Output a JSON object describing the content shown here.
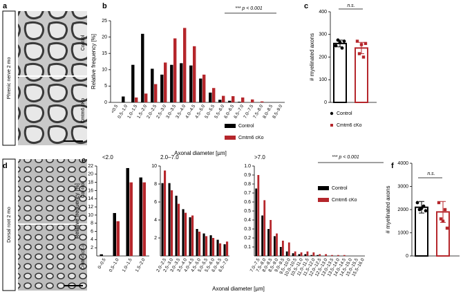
{
  "panels": {
    "a": {
      "letter": "a",
      "side_label": "Phrenic nerve 2 mo",
      "image_labels": [
        "Control",
        "Cmtm6 cKo"
      ]
    },
    "b": {
      "letter": "b"
    },
    "c": {
      "letter": "c"
    },
    "d": {
      "letter": "d",
      "side_label": "Dorsal root 2 mo",
      "image_labels": [
        "Control",
        "Cmtm6 cKo"
      ]
    },
    "e": {
      "letter": "e"
    },
    "f": {
      "letter": "f"
    }
  },
  "chart_data": [
    {
      "type": "bar",
      "y_label": "Relative frequency [%]",
      "x_label": "Axonal diameter [µm]",
      "annotation": "*** p < 0.001",
      "legend": true,
      "categories": [
        "<0.5",
        "0.5–1.0",
        "1.0–1.5",
        "1.5–2.0",
        "2.0–2.5",
        "2.5–3.0",
        "3.0–3.5",
        "3.5–4.0",
        "4.0–4.5",
        "4.5–5.0",
        "5.0–5.5",
        "5.5–6.0",
        "6.0–6.5",
        "6.5–7.0",
        "7.0–7.5",
        "7.5–8.0",
        "8.0–8.5",
        "8.5–9.0"
      ],
      "series": [
        {
          "name": "Control",
          "color": "#000000",
          "values": [
            0,
            1.8,
            11.5,
            21,
            10.3,
            8.5,
            11.5,
            12,
            11.3,
            7.3,
            3,
            0.8,
            0.5,
            0.2,
            0,
            0,
            0,
            0
          ]
        },
        {
          "name": "Cmtm6 cKo",
          "color": "#b5262b",
          "values": [
            0,
            0,
            1.5,
            2.7,
            5.6,
            12.2,
            19.6,
            22.8,
            17.2,
            8.5,
            4.4,
            2,
            1.9,
            1.5,
            0.9,
            0.3,
            0,
            0
          ]
        }
      ],
      "ylim": [
        0,
        25
      ],
      "yticks": [
        0,
        5,
        10,
        15,
        20,
        25
      ]
    },
    {
      "type": "bar",
      "y_label": "# myelinated axons",
      "annotation": "n.s.",
      "legend": true,
      "series": [
        {
          "name": "Control",
          "color": "#000000",
          "marker": "circle",
          "values": [
            260
          ],
          "errors": [
            15
          ],
          "points": [
            250,
            275,
            265,
            240,
            270
          ]
        },
        {
          "name": "Cmtm6 cKo",
          "color": "#b5262b",
          "marker": "square",
          "values": [
            240
          ],
          "errors": [
            25
          ],
          "points": [
            270,
            215,
            255,
            200,
            260
          ]
        }
      ],
      "ylim": [
        0,
        400
      ],
      "yticks": [
        0,
        100,
        200,
        300,
        400
      ]
    },
    {
      "type": "bar",
      "title": "<2.0",
      "y_label": "Relative frequency [%]",
      "legend": false,
      "categories": [
        "0–0.5",
        "0.5–1.0",
        "1.0–1.5",
        "1.5–2.0"
      ],
      "series": [
        {
          "name": "Control",
          "color": "#000000",
          "values": [
            0.4,
            10.5,
            21.5,
            19.2
          ]
        },
        {
          "name": "Cmtm6 cKo",
          "color": "#b5262b",
          "values": [
            0,
            8.5,
            18,
            18
          ]
        }
      ],
      "ylim": [
        0,
        22
      ],
      "yticks": [
        2,
        4,
        6,
        8,
        10,
        12,
        14,
        16,
        18,
        20,
        22
      ]
    },
    {
      "type": "bar",
      "title": "2.0–7.0",
      "x_label": "Axonal diameter [µm]",
      "legend": false,
      "categories": [
        "2.0–2.5",
        "2.5–3.0",
        "3.0–3.5",
        "3.5–4.0",
        "4.0–4.5",
        "4.5–5.0",
        "5.0–5.5",
        "5.5–6.0",
        "6.0–6.5",
        "6.5–7.0"
      ],
      "series": [
        {
          "name": "Control",
          "color": "#000000",
          "values": [
            8.1,
            8.1,
            6.7,
            5.2,
            4.3,
            3,
            2.5,
            2.3,
            1.8,
            1.3
          ]
        },
        {
          "name": "Cmtm6 cKo",
          "color": "#b5262b",
          "values": [
            9.5,
            7.3,
            5.8,
            4.8,
            4.5,
            2.7,
            2.2,
            2,
            1.4,
            1.6
          ]
        }
      ],
      "ylim": [
        0,
        10
      ],
      "yticks": [
        2,
        4,
        6,
        8,
        10
      ]
    },
    {
      "type": "bar",
      "title": ">7.0",
      "annotation": "*** p < 0.001",
      "legend": true,
      "categories": [
        "7.0–7.5",
        "7.5–8.0",
        "8.0–8.5",
        "8.5–9.0",
        "9.0–9.5",
        "9.5–10.0",
        "10.0–10.5",
        "10.5–11.0",
        "11.0–11.5",
        "11.5–12.0",
        "12.0–12.5",
        "12.5–13.0",
        "13.0–13.5",
        "13.5–14.0",
        "14.0–14.5",
        "14.5–15.0",
        "15.0–15.5",
        "15.5–16.0"
      ],
      "series": [
        {
          "name": "Control",
          "color": "#000000",
          "values": [
            0.75,
            0.45,
            0.3,
            0.22,
            0.1,
            0.05,
            0.03,
            0.02,
            0.02,
            0.01,
            0.01,
            0,
            0,
            0,
            0,
            0,
            0,
            0
          ]
        },
        {
          "name": "Cmtm6 cKo",
          "color": "#b5262b",
          "values": [
            0.9,
            0.62,
            0.4,
            0.25,
            0.17,
            0.15,
            0.05,
            0.04,
            0.05,
            0.04,
            0.02,
            0.02,
            0.01,
            0.01,
            0.01,
            0,
            0,
            0
          ]
        }
      ],
      "ylim": [
        0,
        1
      ],
      "yticks": [
        0.1,
        0.2,
        0.3,
        0.4,
        0.5,
        0.6,
        0.7,
        0.8,
        0.9,
        {
          "value": 1,
          "label": "1.0"
        }
      ]
    },
    {
      "type": "bar",
      "y_label": "# myelinated axons",
      "annotation": "n.s.",
      "legend": false,
      "series": [
        {
          "name": "Control",
          "color": "#000000",
          "marker": "circle",
          "values": [
            2100
          ],
          "errors": [
            250
          ],
          "points": [
            2300,
            2000,
            2050,
            2150,
            1950
          ]
        },
        {
          "name": "Cmtm6 cKo",
          "color": "#b5262b",
          "marker": "square",
          "values": [
            1900
          ],
          "errors": [
            450
          ],
          "points": [
            2300,
            1600,
            1500,
            2000,
            1200
          ]
        }
      ],
      "ylim": [
        0,
        4000
      ],
      "yticks": [
        0,
        1000,
        2000,
        3000,
        4000
      ]
    }
  ]
}
